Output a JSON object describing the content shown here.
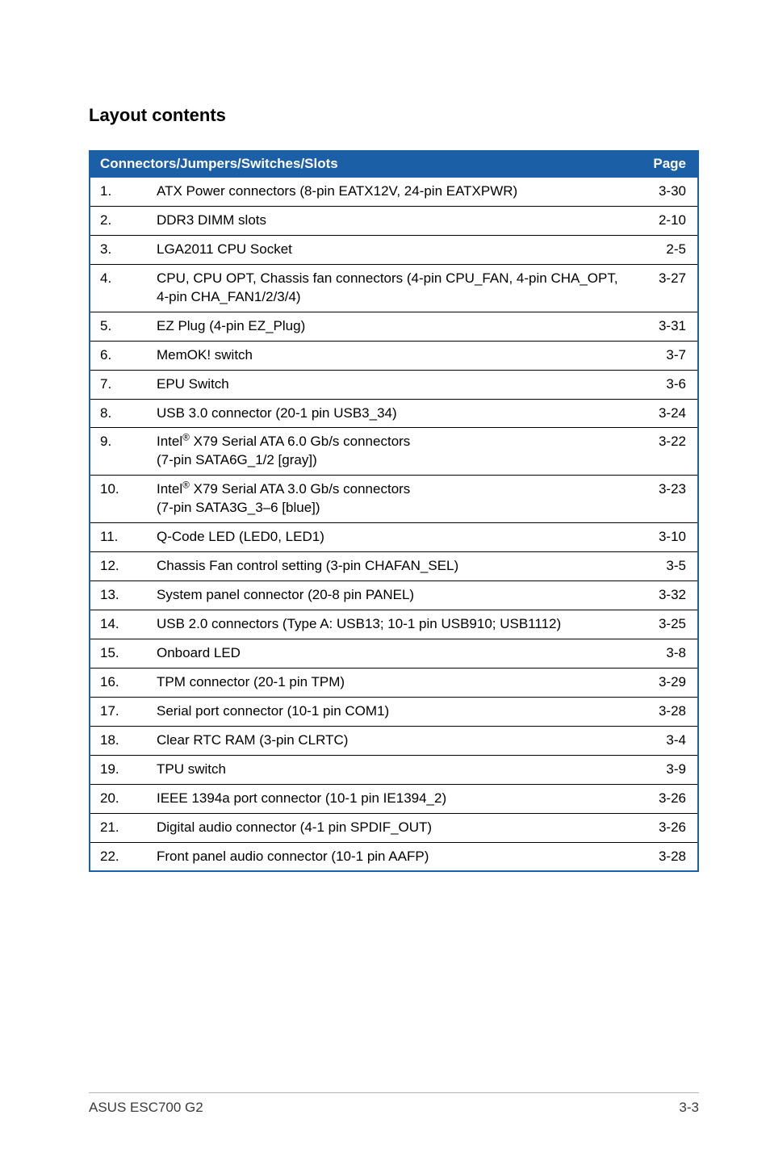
{
  "heading": "Layout contents",
  "table": {
    "header": {
      "title": "Connectors/Jumpers/Switches/Slots",
      "page_label": "Page"
    },
    "rows": [
      {
        "num": "1.",
        "desc": "ATX Power connectors (8-pin EATX12V, 24-pin EATXPWR)",
        "page": "3-30"
      },
      {
        "num": "2.",
        "desc": "DDR3 DIMM slots",
        "page": "2-10"
      },
      {
        "num": "3.",
        "desc": "LGA2011 CPU Socket",
        "page": "2-5"
      },
      {
        "num": "4.",
        "desc": "CPU, CPU OPT, Chassis fan connectors (4-pin CPU_FAN, 4-pin CHA_OPT, 4-pin CHA_FAN1/2/3/4)",
        "page": "3-27"
      },
      {
        "num": "5.",
        "desc": "EZ Plug (4-pin EZ_Plug)",
        "page": "3-31"
      },
      {
        "num": "6.",
        "desc": "MemOK! switch",
        "page": "3-7"
      },
      {
        "num": "7.",
        "desc": "EPU Switch",
        "page": "3-6"
      },
      {
        "num": "8.",
        "desc": "USB 3.0 connector (20-1 pin USB3_34)",
        "page": "3-24"
      },
      {
        "num": "9.",
        "desc_html": "Intel<sup>®</sup> X79 Serial ATA 6.0 Gb/s connectors<br>(7-pin SATA6G_1/2 [gray])",
        "page": "3-22"
      },
      {
        "num": "10.",
        "desc_html": "Intel<sup>®</sup> X79 Serial ATA 3.0 Gb/s connectors<br>(7-pin SATA3G_3–6 [blue])",
        "page": "3-23"
      },
      {
        "num": "11.",
        "desc": "Q-Code LED (LED0, LED1)",
        "page": "3-10"
      },
      {
        "num": "12.",
        "desc": "Chassis Fan control setting (3-pin CHAFAN_SEL)",
        "page": "3-5"
      },
      {
        "num": "13.",
        "desc": "System panel connector (20-8 pin PANEL)",
        "page": "3-32"
      },
      {
        "num": "14.",
        "desc": "USB 2.0 connectors (Type A: USB13; 10-1 pin USB910; USB1112)",
        "page": "3-25"
      },
      {
        "num": "15.",
        "desc": "Onboard LED",
        "page": "3-8"
      },
      {
        "num": "16.",
        "desc": "TPM connector (20-1 pin TPM)",
        "page": "3-29"
      },
      {
        "num": "17.",
        "desc": "Serial port connector (10-1 pin COM1)",
        "page": "3-28"
      },
      {
        "num": "18.",
        "desc": "Clear RTC RAM (3-pin CLRTC)",
        "page": "3-4"
      },
      {
        "num": "19.",
        "desc": "TPU switch",
        "page": "3-9"
      },
      {
        "num": "20.",
        "desc": "IEEE 1394a port connector (10-1 pin IE1394_2)",
        "page": "3-26"
      },
      {
        "num": "21.",
        "desc": "Digital audio connector (4-1 pin SPDIF_OUT)",
        "page": "3-26"
      },
      {
        "num": "22.",
        "desc": "Front panel audio connector (10-1 pin AAFP)",
        "page": "3-28"
      }
    ]
  },
  "footer": {
    "left": "ASUS ESC700 G2",
    "right": "3-3"
  }
}
